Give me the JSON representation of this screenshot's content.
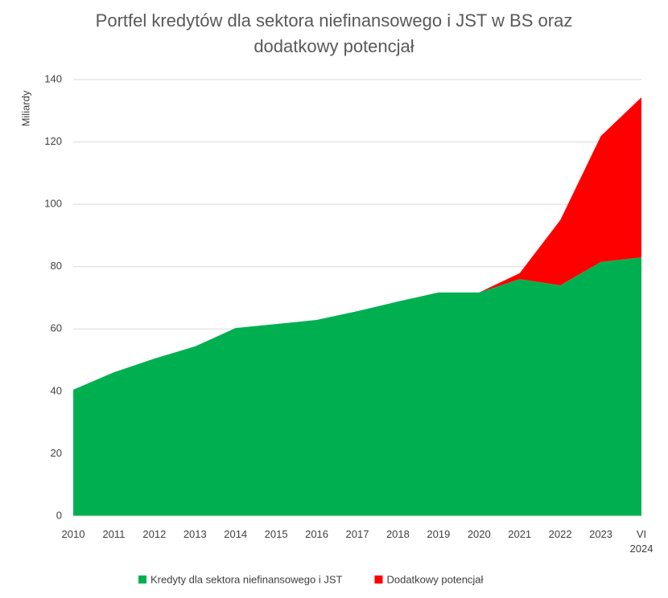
{
  "chart_data": {
    "type": "stacked_area",
    "title": "Portfel kredytów dla sektora niefinansowego i JST w BS oraz dodatkowy potencjał",
    "y_label": "Miliardy",
    "categories": [
      "2010",
      "2011",
      "2012",
      "2013",
      "2014",
      "2015",
      "2016",
      "2017",
      "2018",
      "2019",
      "2020",
      "2021",
      "2022",
      "2023",
      "VI\n2024"
    ],
    "series": [
      {
        "name": "Kredyty dla sektora niefinansowego i JST",
        "color": "#00b050",
        "values": [
          40.5,
          46.1,
          50.5,
          54.4,
          60.3,
          61.6,
          62.9,
          65.7,
          68.8,
          71.7,
          71.7,
          76.0,
          74.0,
          81.5,
          83.0
        ]
      },
      {
        "name": "Dodatkowy potencjał",
        "color": "#ff0000",
        "values": [
          0,
          0,
          0,
          0,
          0,
          0,
          0,
          0,
          0,
          0,
          0,
          1.9,
          20.9,
          40.4,
          51.3
        ]
      }
    ],
    "ylim": [
      0,
      140
    ],
    "yticks": [
      0,
      20,
      40,
      60,
      80,
      100,
      120,
      140
    ],
    "grid": true
  }
}
